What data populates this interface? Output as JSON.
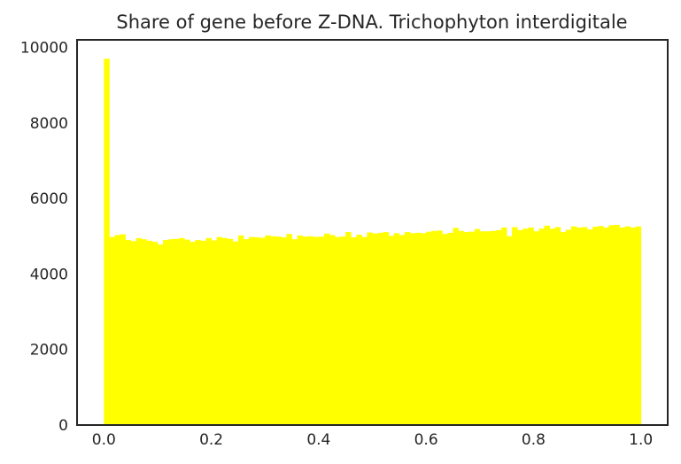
{
  "chart_data": {
    "type": "bar",
    "title": "Share of gene before Z-DNA. Trichophyton interdigitale",
    "xlabel": "",
    "ylabel": "",
    "xlim": [
      -0.05,
      1.05
    ],
    "ylim": [
      0,
      10200
    ],
    "x_ticks": [
      "0.0",
      "0.2",
      "0.4",
      "0.6",
      "0.8",
      "1.0"
    ],
    "y_ticks": [
      "0",
      "2000",
      "4000",
      "6000",
      "8000",
      "10000"
    ],
    "grid": false,
    "legend": "none",
    "bar_color": "#ffff00",
    "bin_start": 0.0,
    "bin_width": 0.01,
    "values": [
      9700,
      4980,
      5030,
      5050,
      4900,
      4870,
      4950,
      4920,
      4880,
      4850,
      4780,
      4900,
      4920,
      4930,
      4950,
      4910,
      4850,
      4900,
      4880,
      4950,
      4890,
      4980,
      4950,
      4930,
      4860,
      5020,
      4920,
      4980,
      4970,
      4960,
      5020,
      5000,
      4990,
      4970,
      5060,
      4920,
      5020,
      4990,
      5000,
      4980,
      4990,
      5070,
      5030,
      4980,
      4990,
      5110,
      4970,
      5040,
      4980,
      5100,
      5070,
      5090,
      5110,
      5010,
      5080,
      5030,
      5110,
      5080,
      5090,
      5080,
      5120,
      5140,
      5150,
      5060,
      5090,
      5220,
      5140,
      5110,
      5120,
      5190,
      5130,
      5130,
      5140,
      5160,
      5230,
      5000,
      5240,
      5160,
      5200,
      5230,
      5130,
      5200,
      5280,
      5200,
      5240,
      5110,
      5170,
      5260,
      5230,
      5240,
      5180,
      5250,
      5270,
      5230,
      5290,
      5300,
      5230,
      5260,
      5230,
      5260
    ]
  }
}
